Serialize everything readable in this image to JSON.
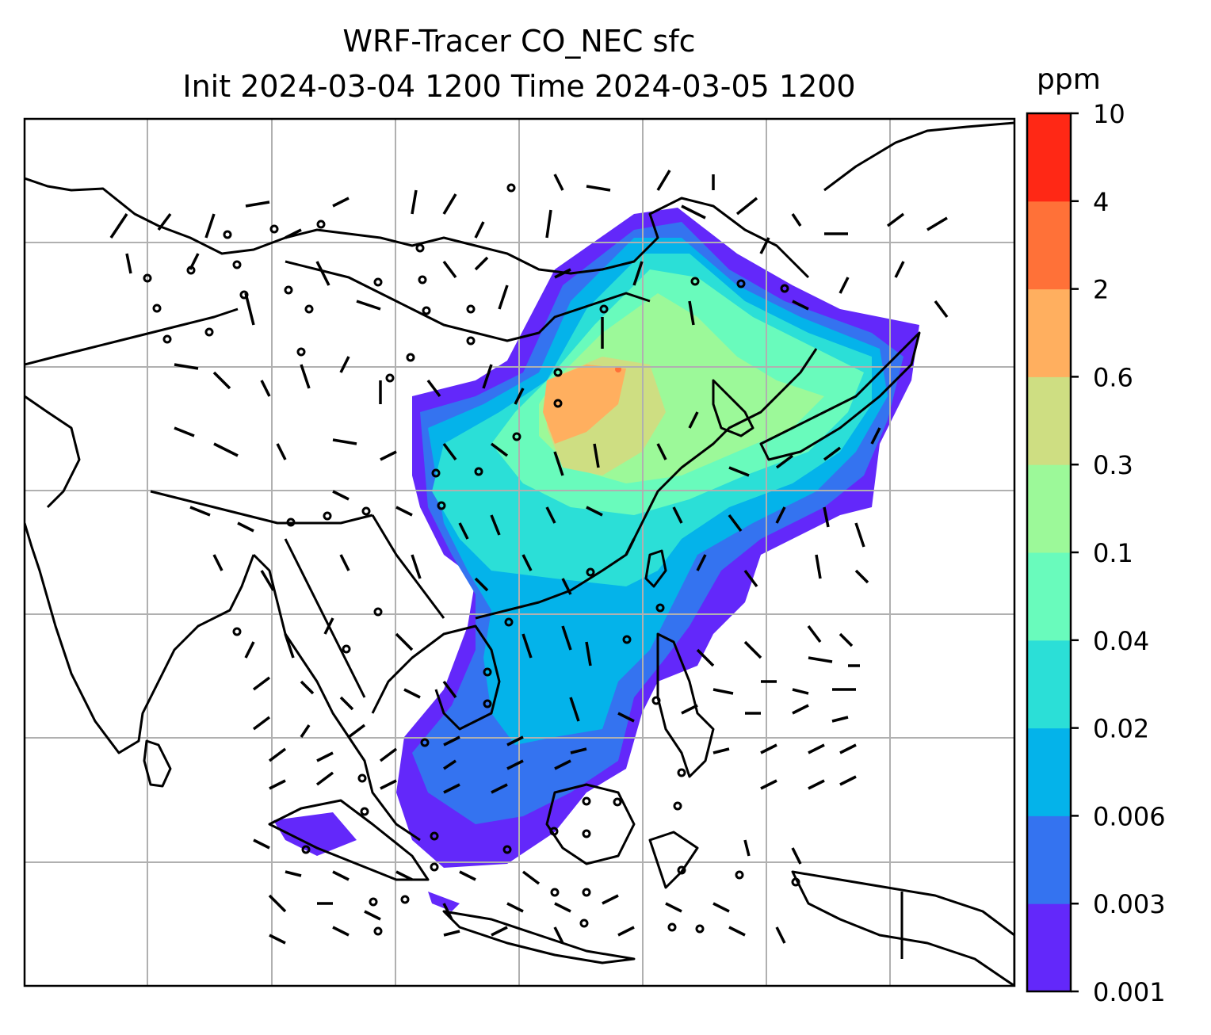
{
  "title_line1": "WRF-Tracer CO_NEC sfc",
  "title_line2": "Init 2024-03-04 1200 Time 2024-03-05 1200",
  "colorbar": {
    "unit": "ppm",
    "levels": [
      "0.001",
      "0.003",
      "0.006",
      "0.02",
      "0.04",
      "0.1",
      "0.3",
      "0.6",
      "2",
      "4",
      "10"
    ],
    "colors": [
      "#6328fa",
      "#3473f0",
      "#04b3ea",
      "#2bdfd7",
      "#69fbbc",
      "#9cf999",
      "#cede82",
      "#ffaf5f",
      "#ff7138",
      "#ff2815"
    ]
  },
  "map": {
    "projection": "lat-lon grid",
    "gridlines": true,
    "overlays": [
      "coastlines",
      "country borders",
      "wind barbs"
    ],
    "field": "CO_NEC surface tracer concentration"
  }
}
